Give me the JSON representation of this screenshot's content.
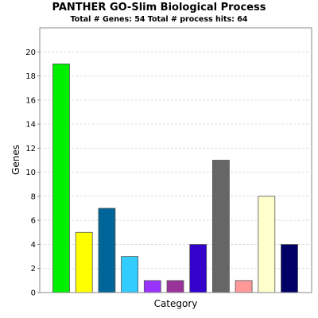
{
  "chart_data": {
    "type": "bar",
    "title": "PANTHER GO-Slim Biological Process",
    "subtitle": "Total # Genes: 54    Total # process hits: 64",
    "xlabel": "Category",
    "ylabel": "Genes",
    "ylim": [
      0,
      22
    ],
    "yticks": [
      0,
      2,
      4,
      6,
      8,
      10,
      12,
      14,
      16,
      18,
      20
    ],
    "grid": true,
    "legend": "none",
    "values": [
      19,
      5,
      7,
      3,
      1,
      1,
      4,
      11,
      1,
      8,
      4
    ],
    "colors": [
      "#00ee00",
      "#ffff00",
      "#006699",
      "#33ccff",
      "#9933ff",
      "#993399",
      "#3300cc",
      "#666666",
      "#ff9999",
      "#ffffcc",
      "#000066"
    ]
  }
}
